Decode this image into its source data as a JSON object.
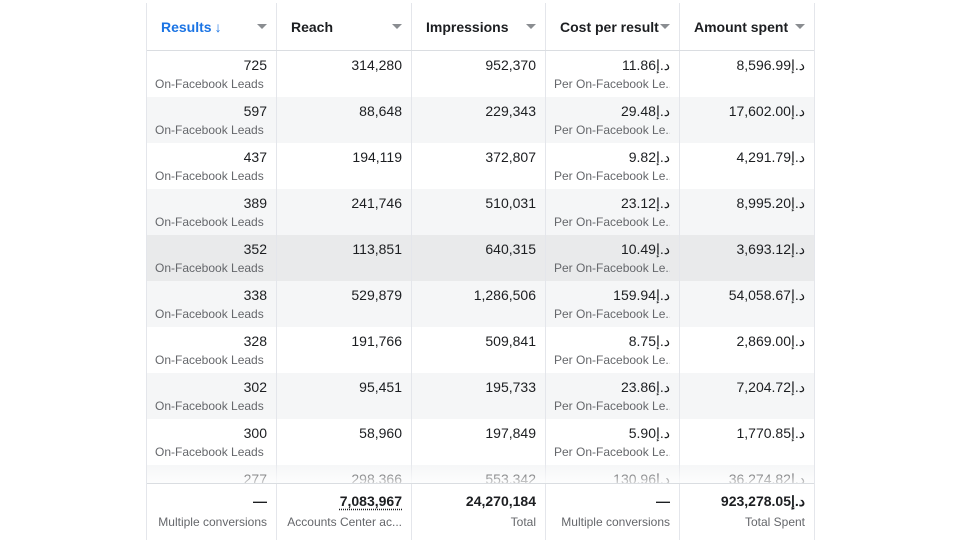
{
  "columns": [
    {
      "key": "results",
      "label": "Results",
      "sort_icon": "arrow-down-icon",
      "sorted": true
    },
    {
      "key": "reach",
      "label": "Reach"
    },
    {
      "key": "impressions",
      "label": "Impressions"
    },
    {
      "key": "cost_per_result",
      "label": "Cost per result"
    },
    {
      "key": "amount_spent",
      "label": "Amount spent"
    }
  ],
  "sort_arrow": "↓",
  "rows": [
    {
      "results": "725",
      "results_sub": "On-Facebook Leads",
      "reach": "314,280",
      "impressions": "952,370",
      "cost": "11.86د.إ",
      "cost_sub": "Per On-Facebook Le...",
      "spent": "8,596.99د.إ"
    },
    {
      "results": "597",
      "results_sub": "On-Facebook Leads",
      "reach": "88,648",
      "impressions": "229,343",
      "cost": "29.48د.إ",
      "cost_sub": "Per On-Facebook Le...",
      "spent": "17,602.00د.إ"
    },
    {
      "results": "437",
      "results_sub": "On-Facebook Leads",
      "reach": "194,119",
      "impressions": "372,807",
      "cost": "9.82د.إ",
      "cost_sub": "Per On-Facebook Le...",
      "spent": "4,291.79د.إ"
    },
    {
      "results": "389",
      "results_sub": "On-Facebook Leads",
      "reach": "241,746",
      "impressions": "510,031",
      "cost": "23.12د.إ",
      "cost_sub": "Per On-Facebook Le...",
      "spent": "8,995.20د.إ"
    },
    {
      "results": "352",
      "results_sub": "On-Facebook Leads",
      "reach": "113,851",
      "impressions": "640,315",
      "cost": "10.49د.إ",
      "cost_sub": "Per On-Facebook Le...",
      "spent": "3,693.12د.إ"
    },
    {
      "results": "338",
      "results_sub": "On-Facebook Leads",
      "reach": "529,879",
      "impressions": "1,286,506",
      "cost": "159.94د.إ",
      "cost_sub": "Per On-Facebook Le...",
      "spent": "54,058.67د.إ"
    },
    {
      "results": "328",
      "results_sub": "On-Facebook Leads",
      "reach": "191,766",
      "impressions": "509,841",
      "cost": "8.75د.إ",
      "cost_sub": "Per On-Facebook Le...",
      "spent": "2,869.00د.إ"
    },
    {
      "results": "302",
      "results_sub": "On-Facebook Leads",
      "reach": "95,451",
      "impressions": "195,733",
      "cost": "23.86د.إ",
      "cost_sub": "Per On-Facebook Le...",
      "spent": "7,204.72د.إ"
    },
    {
      "results": "300",
      "results_sub": "On-Facebook Leads",
      "reach": "58,960",
      "impressions": "197,849",
      "cost": "5.90د.إ",
      "cost_sub": "Per On-Facebook Le...",
      "spent": "1,770.85د.إ"
    },
    {
      "results": "277",
      "results_sub": "",
      "reach": "298,366",
      "impressions": "553,342",
      "cost": "130.96د.إ",
      "cost_sub": "",
      "spent": "36,274.82د.إ"
    }
  ],
  "highlighted_row": 4,
  "footer": {
    "results": {
      "value": "—",
      "label": "Multiple conversions"
    },
    "reach": {
      "value": "7,083,967",
      "label": "Accounts Center ac..."
    },
    "impressions": {
      "value": "24,270,184",
      "label": "Total"
    },
    "cost": {
      "value": "—",
      "label": "Multiple conversions"
    },
    "spent": {
      "value": "923,278.05د.إ",
      "label": "Total Spent"
    }
  },
  "colors": {
    "accent": "#1b74e4",
    "row_alt": "#f5f6f7",
    "row_highlight": "#e9eaeb",
    "muted_text": "#65676b"
  }
}
